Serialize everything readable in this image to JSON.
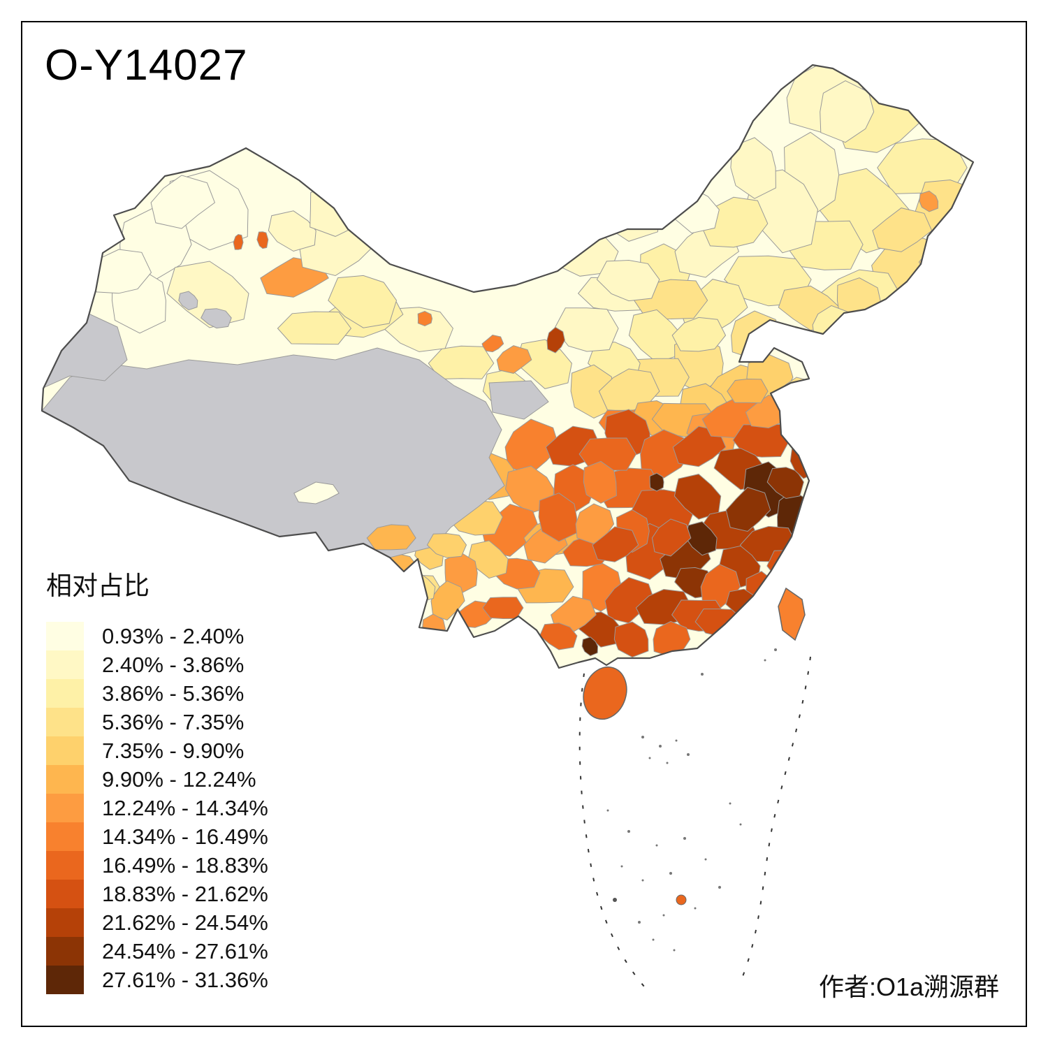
{
  "title": "O-Y14027",
  "attribution": "作者:O1a溯源群",
  "legend": {
    "title": "相对占比",
    "no_data_color": "#C8C8CC",
    "classes": [
      {
        "label": "0.93% - 2.40%",
        "color": "#FFFEE3"
      },
      {
        "label": "2.40% - 3.86%",
        "color": "#FFF8C5"
      },
      {
        "label": "3.86% - 5.36%",
        "color": "#FEF1A7"
      },
      {
        "label": "5.36% - 7.35%",
        "color": "#FEE289"
      },
      {
        "label": "7.35% - 9.90%",
        "color": "#FED16C"
      },
      {
        "label": "9.90% - 12.24%",
        "color": "#FEB64F"
      },
      {
        "label": "12.24% - 14.34%",
        "color": "#FD9C41"
      },
      {
        "label": "14.34% - 16.49%",
        "color": "#F8812E"
      },
      {
        "label": "16.49% - 18.83%",
        "color": "#EA671E"
      },
      {
        "label": "18.83% - 21.62%",
        "color": "#D55112"
      },
      {
        "label": "21.62% - 24.54%",
        "color": "#B54108"
      },
      {
        "label": "24.54% - 27.61%",
        "color": "#8C3405"
      },
      {
        "label": "27.61% - 31.36%",
        "color": "#5E2707"
      }
    ]
  },
  "map": {
    "description": "China prefecture-level choropleth of O-Y14027 relative frequency",
    "border_color": "#4D4D4D",
    "prefecture_border_color": "#999999"
  }
}
